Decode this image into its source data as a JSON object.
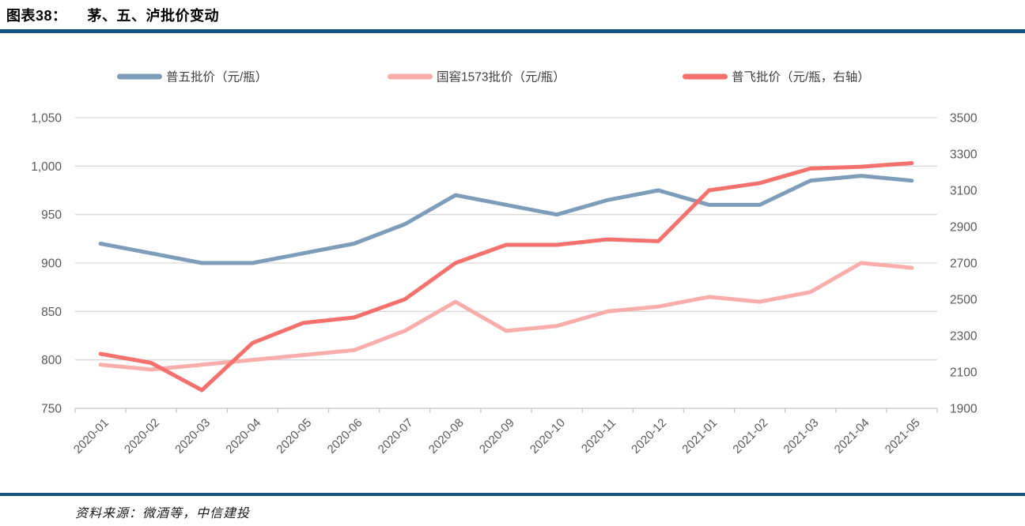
{
  "page": {
    "background": "#ffffff"
  },
  "header": {
    "figure_label": "图表38：",
    "title": "茅、五、泸批价变动"
  },
  "footer": {
    "source_text": "资料来源：微酒等，中信建投"
  },
  "colors": {
    "rule_blue": "#14537F",
    "wuliangye_line": "#7E9DBA",
    "guojiao_line": "#F9AEAB",
    "feitian_line": "#F4716D",
    "gridline": "#D9D9D9",
    "axis_line": "#C6C6C6",
    "axis_text": "#595959",
    "legend_text": "#404040"
  },
  "chart_data": {
    "type": "line",
    "title": "",
    "legend_position": "top",
    "grid": "horizontal",
    "categories": [
      "2020-01",
      "2020-02",
      "2020-03",
      "2020-04",
      "2020-05",
      "2020-06",
      "2020-07",
      "2020-08",
      "2020-09",
      "2020-10",
      "2020-11",
      "2020-12",
      "2021-01",
      "2021-02",
      "2021-03",
      "2021-04",
      "2021-05"
    ],
    "series": [
      {
        "name": "普五批价（元/瓶）",
        "axis": "left",
        "color_key": "wuliangye_line",
        "values": [
          920,
          910,
          900,
          900,
          910,
          920,
          940,
          970,
          960,
          950,
          965,
          975,
          960,
          960,
          985,
          990,
          985
        ]
      },
      {
        "name": "国窖1573批价（元/瓶）",
        "axis": "left",
        "color_key": "guojiao_line",
        "values": [
          795,
          790,
          795,
          800,
          805,
          810,
          830,
          860,
          830,
          835,
          850,
          855,
          865,
          860,
          870,
          900,
          895
        ]
      },
      {
        "name": "普飞批价（元/瓶，右轴）",
        "axis": "right",
        "color_key": "feitian_line",
        "values": [
          2200,
          2150,
          2000,
          2260,
          2370,
          2400,
          2500,
          2700,
          2800,
          2800,
          2830,
          2820,
          3100,
          3140,
          3220,
          3230,
          3250
        ]
      }
    ],
    "left_axis": {
      "min": 750,
      "max": 1050,
      "step": 50,
      "tick_values": [
        1050,
        1000,
        950,
        900,
        850,
        800,
        750
      ],
      "tick_labels": [
        "1,050",
        "1,000",
        "950",
        "900",
        "850",
        "800",
        "750"
      ]
    },
    "right_axis": {
      "min": 1900,
      "max": 3500,
      "step": 200,
      "tick_values": [
        3500,
        3300,
        3100,
        2900,
        2700,
        2500,
        2300,
        2100,
        1900
      ],
      "tick_labels": [
        "3500",
        "3300",
        "3100",
        "2900",
        "2700",
        "2500",
        "2300",
        "2100",
        "1900"
      ]
    }
  }
}
